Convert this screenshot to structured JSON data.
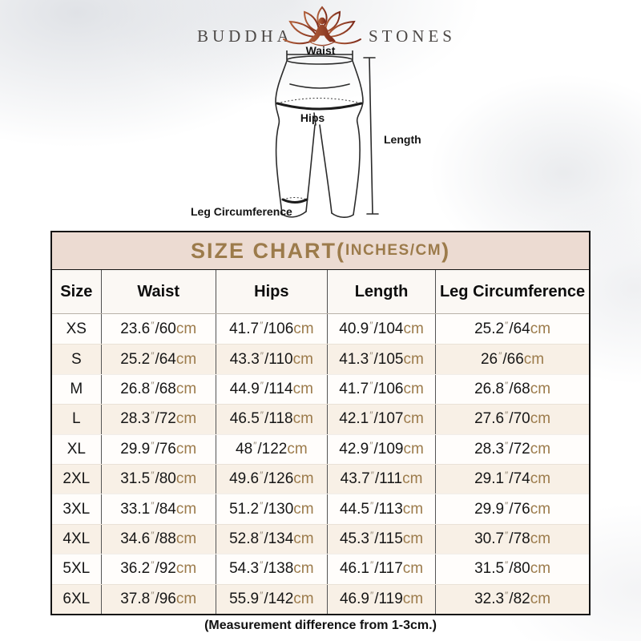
{
  "brand": {
    "word_left": "BUDDHA",
    "word_right": "STONES"
  },
  "diagram": {
    "waist_label": "Waist",
    "hips_label": "Hips",
    "length_label": "Length",
    "leg_label": "Leg Circumference"
  },
  "table": {
    "title": {
      "main": "SIZE CHART(",
      "small": "INCHES/CM",
      "close": ")"
    },
    "columns": [
      "Size",
      "Waist",
      "Hips",
      "Length",
      "Leg Circumference"
    ],
    "unit_inch_mark": "″",
    "separator": "/",
    "unit_cm": "cm",
    "rows": [
      {
        "size": "XS",
        "waist": [
          "23.6",
          "60"
        ],
        "hips": [
          "41.7",
          "106"
        ],
        "length": [
          "40.9",
          "104"
        ],
        "leg": [
          "25.2",
          "64"
        ]
      },
      {
        "size": "S",
        "waist": [
          "25.2",
          "64"
        ],
        "hips": [
          "43.3",
          "110"
        ],
        "length": [
          "41.3",
          "105"
        ],
        "leg": [
          "26",
          "66"
        ]
      },
      {
        "size": "M",
        "waist": [
          "26.8",
          "68"
        ],
        "hips": [
          "44.9",
          "114"
        ],
        "length": [
          "41.7",
          "106"
        ],
        "leg": [
          "26.8",
          "68"
        ]
      },
      {
        "size": "L",
        "waist": [
          "28.3",
          "72"
        ],
        "hips": [
          "46.5",
          "118"
        ],
        "length": [
          "42.1",
          "107"
        ],
        "leg": [
          "27.6",
          "70"
        ]
      },
      {
        "size": "XL",
        "waist": [
          "29.9",
          "76"
        ],
        "hips": [
          "48",
          "122"
        ],
        "length": [
          "42.9",
          "109"
        ],
        "leg": [
          "28.3",
          "72"
        ]
      },
      {
        "size": "2XL",
        "waist": [
          "31.5",
          "80"
        ],
        "hips": [
          "49.6",
          "126"
        ],
        "length": [
          "43.7",
          "111"
        ],
        "leg": [
          "29.1",
          "74"
        ]
      },
      {
        "size": "3XL",
        "waist": [
          "33.1",
          "84"
        ],
        "hips": [
          "51.2",
          "130"
        ],
        "length": [
          "44.5",
          "113"
        ],
        "leg": [
          "29.9",
          "76"
        ]
      },
      {
        "size": "4XL",
        "waist": [
          "34.6",
          "88"
        ],
        "hips": [
          "52.8",
          "134"
        ],
        "length": [
          "45.3",
          "115"
        ],
        "leg": [
          "30.7",
          "78"
        ]
      },
      {
        "size": "5XL",
        "waist": [
          "36.2",
          "92"
        ],
        "hips": [
          "54.3",
          "138"
        ],
        "length": [
          "46.1",
          "117"
        ],
        "leg": [
          "31.5",
          "80"
        ]
      },
      {
        "size": "6XL",
        "waist": [
          "37.8",
          "96"
        ],
        "hips": [
          "55.9",
          "142"
        ],
        "length": [
          "46.9",
          "119"
        ],
        "leg": [
          "32.3",
          "82"
        ]
      }
    ]
  },
  "footer": "(Measurement difference from 1-3cm.)",
  "colors": {
    "accent_tan": "#9c7b4b",
    "title_bg": "#ecdbd2",
    "row_alt_bg": "#f8f0e6",
    "lotus_dark": "#7e2b1a",
    "lotus_light": "#b2603a",
    "grid_line": "#555555"
  }
}
